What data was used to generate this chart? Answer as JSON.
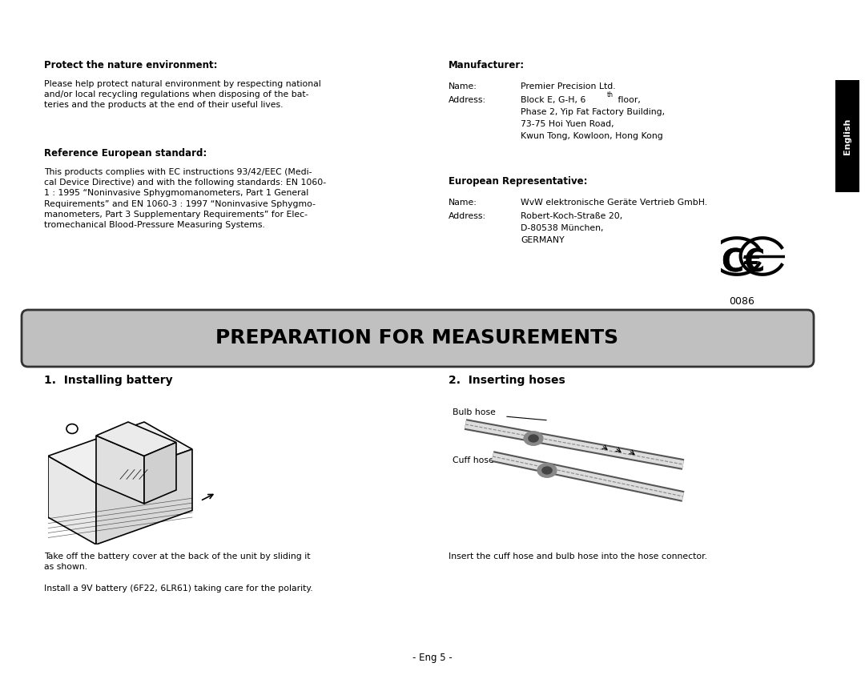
{
  "bg_color": "#ffffff",
  "page_width": 10.8,
  "page_height": 8.43,
  "section1_title": "Protect the nature environment:",
  "section1_body": "Please help protect natural environment by respecting national\nand/or local recycling regulations when disposing of the bat-\nteries and the products at the end of their useful lives.",
  "section2_title": "Reference European standard:",
  "section2_body": "This products complies with EC instructions 93/42/EEC (Medi-\ncal Device Directive) and with the following standards: EN 1060-\n1 : 1995 “Noninvasive Sphygmomanometers, Part 1 General\nRequirements” and EN 1060-3 : 1997 “Noninvasive Sphygmo-\nmanometers, Part 3 Supplementary Requirements” for Elec-\ntromechanical Blood-Pressure Measuring Systems.",
  "section3_title": "Manufacturer:",
  "section3_name_label": "Name:",
  "section3_name_value": "Premier Precision Ltd.",
  "section3_addr_label": "Address:",
  "section3_addr_line1": "Block E, G-H, 6",
  "section3_addr_sup": "th",
  "section3_addr_rest": " floor,",
  "section3_addr_line2": "Phase 2, Yip Fat Factory Building,",
  "section3_addr_line3": "73-75 Hoi Yuen Road,",
  "section3_addr_line4": "Kwun Tong, Kowloon, Hong Kong",
  "section4_title": "European Representative:",
  "section4_name_label": "Name:",
  "section4_name_value": "WvW elektronische Geräte Vertrieb GmbH.",
  "section4_addr_label": "Address:",
  "section4_addr_line1": "Robert-Koch-Straße 20,",
  "section4_addr_line2": "D-80538 München,",
  "section4_addr_line3": "GERMANY",
  "ce_number": "0086",
  "banner_text": "PREPARATION FOR MEASUREMENTS",
  "banner_bg": "#c0c0c0",
  "banner_border": "#333333",
  "section5_title": "1.  Installing battery",
  "section5_body1": "Take off the battery cover at the back of the unit by sliding it\nas shown.",
  "section5_body2": "Install a 9V battery (6F22, 6LR61) taking care for the polarity.",
  "section6_title": "2.  Inserting hoses",
  "section6_body": "Insert the cuff hose and bulb hose into the hose connector.",
  "bulb_hose_label": "Bulb hose",
  "cuff_hose_label": "Cuff hose",
  "footer": "- Eng 5 -",
  "english_tab_text": "English",
  "english_tab_bg": "#000000",
  "english_tab_fg": "#ffffff"
}
